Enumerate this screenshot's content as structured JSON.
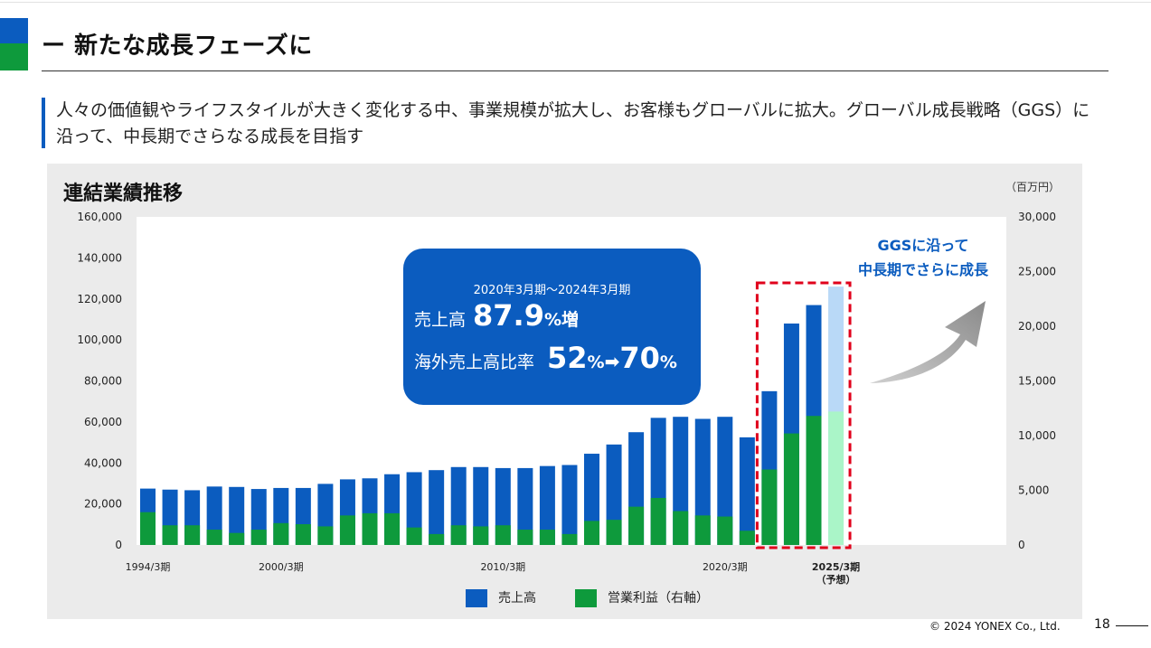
{
  "header": {
    "title": "ー 新たな成長フェーズに",
    "lead": "人々の価値観やライフスタイルが大きく変化する中、事業規模が拡大し、お客様もグローバルに拡大。グローバル成長戦略（GGS）に沿って、中長期でさらなる成長を目指す"
  },
  "colors": {
    "brand_blue": "#0b5cbf",
    "brand_green": "#0e9a3c",
    "forecast_blue": "#b9d9f7",
    "forecast_green": "#aaf5c8",
    "highlight_red": "#e0001b"
  },
  "callout": {
    "period": "2020年3月期～2024年3月期",
    "sales_label": "売上高",
    "sales_growth_value": "87.9",
    "sales_growth_unit": "%増",
    "overseas_label": "海外売上高比率",
    "overseas_from_value": "52",
    "overseas_from_unit": "%",
    "arrow": "➡",
    "overseas_to_value": "70",
    "overseas_to_unit": "%"
  },
  "annotation": {
    "line1": "GGSに沿って",
    "line2": "中長期でさらに成長"
  },
  "footer": {
    "copyright": "© 2024 YONEX Co., Ltd.",
    "page": "18"
  },
  "chart_data": {
    "type": "bar",
    "title": "連結業績推移",
    "unit": "（百万円）",
    "y_left": {
      "ylim": [
        0,
        160000
      ],
      "ticks": [
        "0",
        "20,000",
        "40,000",
        "60,000",
        "80,000",
        "100,000",
        "120,000",
        "140,000",
        "160,000"
      ]
    },
    "y_right": {
      "ylim": [
        0,
        30000
      ],
      "ticks": [
        "0",
        "5,000",
        "10,000",
        "15,000",
        "20,000",
        "25,000",
        "30,000"
      ]
    },
    "x_tick_labels": [
      {
        "index": 0,
        "text": "1994/3期"
      },
      {
        "index": 6,
        "text": "2000/3期"
      },
      {
        "index": 16,
        "text": "2010/3期"
      },
      {
        "index": 26,
        "text": "2020/3期"
      },
      {
        "index": 31,
        "text": "2025/3期",
        "sub": "（予想）"
      }
    ],
    "categories": [
      "1994/3",
      "1995/3",
      "1996/3",
      "1997/3",
      "1998/3",
      "1999/3",
      "2000/3",
      "2001/3",
      "2002/3",
      "2003/3",
      "2004/3",
      "2005/3",
      "2006/3",
      "2007/3",
      "2008/3",
      "2009/3",
      "2010/3",
      "2011/3",
      "2012/3",
      "2013/3",
      "2014/3",
      "2015/3",
      "2016/3",
      "2017/3",
      "2018/3",
      "2019/3",
      "2020/3",
      "2021/3",
      "2022/3",
      "2023/3",
      "2024/3",
      "2025/3"
    ],
    "series": [
      {
        "name": "売上高",
        "axis": "left",
        "color": "#0b5cbf",
        "values": [
          27500,
          27000,
          26700,
          28500,
          28300,
          27300,
          27800,
          27800,
          29800,
          32000,
          32500,
          34500,
          35500,
          36500,
          38000,
          38000,
          37500,
          37500,
          38500,
          39000,
          44500,
          49000,
          55000,
          62000,
          62500,
          61500,
          62500,
          52500,
          75000,
          108000,
          117000,
          126000
        ]
      },
      {
        "name": "営業利益（右軸）",
        "axis": "right",
        "color": "#0e9a3c",
        "values": [
          3000,
          1800,
          1800,
          1400,
          1100,
          1400,
          2000,
          1900,
          1700,
          2700,
          2900,
          2900,
          1600,
          1000,
          1800,
          1700,
          1800,
          1400,
          1400,
          1000,
          2200,
          2300,
          3500,
          4300,
          3100,
          2700,
          2600,
          1300,
          6900,
          10200,
          11800,
          12200
        ]
      }
    ],
    "forecast_index": 31,
    "highlight_indices": [
      28,
      29,
      30,
      31
    ],
    "legend": {
      "position": "bottom"
    }
  }
}
